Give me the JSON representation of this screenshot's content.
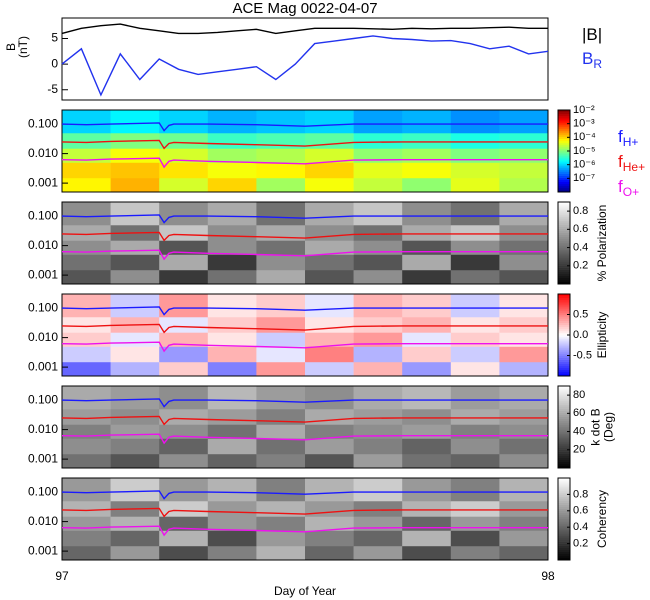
{
  "chart_data": [
    {
      "type": "line",
      "title": "ACE Mag 0022-04-07",
      "ylabel": [
        "B",
        "(nT)"
      ],
      "xlim": [
        97,
        98
      ],
      "ylim": [
        -7,
        9
      ],
      "yticks": [
        -5,
        0,
        5
      ],
      "x": [
        97,
        97.04,
        97.08,
        97.12,
        97.16,
        97.2,
        97.24,
        97.28,
        97.32,
        97.36,
        97.4,
        97.44,
        97.48,
        97.52,
        97.56,
        97.6,
        97.64,
        97.68,
        97.72,
        97.76,
        97.8,
        97.84,
        97.88,
        97.92,
        97.96,
        98
      ],
      "series": [
        {
          "name": "|B|",
          "color": "#000000",
          "values": [
            6,
            7,
            7.5,
            7.8,
            7,
            6.5,
            6,
            6,
            6.2,
            6.5,
            6.8,
            6,
            6.5,
            7,
            7,
            7,
            6.9,
            6.8,
            7,
            6.9,
            7,
            7,
            7.1,
            7.2,
            7,
            7
          ]
        },
        {
          "name": "B",
          "sub": "R",
          "color": "#2233ee",
          "values": [
            0,
            3,
            -6,
            2,
            -3,
            1,
            -1,
            -2,
            -1.5,
            -1,
            -0.5,
            -3,
            0,
            4,
            4.5,
            5,
            5.5,
            5,
            4.8,
            4.5,
            4.6,
            4,
            3,
            3.5,
            2,
            2.5
          ]
        }
      ]
    },
    {
      "type": "heatmap",
      "colormap": "jet",
      "xlim": [
        97,
        98
      ],
      "ylog": true,
      "ylim": [
        0.0005,
        0.3
      ],
      "yticks": [
        {
          "value": 0.1,
          "label": "0.100"
        },
        {
          "value": 0.01,
          "label": "0.010"
        },
        0.001
      ],
      "xbins": [
        97,
        97.1,
        97.2,
        97.3,
        97.4,
        97.5,
        97.6,
        97.7,
        97.8,
        97.9,
        98
      ],
      "ybins": [
        0.0005,
        0.0015,
        0.005,
        0.015,
        0.05,
        0.3
      ],
      "z": [
        [
          -4.2,
          -3.8,
          -4.5,
          -4.0,
          -4.8,
          -4.3,
          -4.6,
          -4.9,
          -4.4,
          -4.7
        ],
        [
          -4.0,
          -3.9,
          -4.1,
          -4.3,
          -4.2,
          -4.0,
          -4.4,
          -4.3,
          -4.5,
          -4.6
        ],
        [
          -4.6,
          -4.3,
          -4.5,
          -4.8,
          -4.7,
          -4.5,
          -4.9,
          -4.8,
          -5.0,
          -4.9
        ],
        [
          -5.2,
          -5.0,
          -5.1,
          -5.4,
          -5.3,
          -5.2,
          -5.5,
          -5.4,
          -5.6,
          -5.5
        ],
        [
          -6.0,
          -5.8,
          -6.0,
          -6.2,
          -6.1,
          -6.0,
          -6.3,
          -6.2,
          -6.4,
          -6.3
        ]
      ],
      "zlim": [
        -8,
        -2
      ],
      "zticks": [
        {
          "value": -2,
          "label": "10⁻²"
        },
        {
          "value": -3,
          "label": "10⁻³"
        },
        {
          "value": -4,
          "label": "10⁻⁴"
        },
        {
          "value": -5,
          "label": "10⁻⁵"
        },
        {
          "value": -6,
          "label": "10⁻⁶"
        },
        {
          "value": -7,
          "label": "10⁻⁷"
        }
      ],
      "legend": true,
      "x": [
        97,
        97.05,
        97.1,
        97.2,
        97.21,
        97.22,
        97.23,
        97.3,
        97.4,
        97.5,
        97.6,
        97.7,
        97.85,
        98
      ],
      "series": [
        {
          "name": "f",
          "sub": "H+",
          "color": "#1a1aff",
          "values": [
            0.1,
            0.095,
            0.1,
            0.11,
            0.06,
            0.09,
            0.1,
            0.1,
            0.095,
            0.085,
            0.1,
            0.1,
            0.1,
            0.1
          ]
        },
        {
          "name": "f",
          "sub": "He+",
          "color": "#ee1111",
          "values": [
            0.025,
            0.024,
            0.026,
            0.028,
            0.015,
            0.022,
            0.024,
            0.022,
            0.02,
            0.018,
            0.024,
            0.025,
            0.025,
            0.025
          ]
        },
        {
          "name": "f",
          "sub": "O+",
          "color": "#ee11ee",
          "values": [
            0.0062,
            0.006,
            0.0065,
            0.007,
            0.0035,
            0.0055,
            0.006,
            0.0055,
            0.005,
            0.0045,
            0.006,
            0.0062,
            0.0062,
            0.0062
          ]
        }
      ]
    },
    {
      "type": "heatmap",
      "colormap": "gray",
      "xlim": [
        97,
        98
      ],
      "ylog": true,
      "ylim": [
        0.0005,
        0.3
      ],
      "yticks": [
        {
          "value": 0.1,
          "label": "0.100"
        },
        {
          "value": 0.01,
          "label": "0.010"
        },
        0.001
      ],
      "xbins": [
        97,
        97.1,
        97.2,
        97.3,
        97.4,
        97.5,
        97.6,
        97.7,
        97.8,
        97.9,
        98
      ],
      "ybins": [
        0.0005,
        0.0015,
        0.005,
        0.015,
        0.05,
        0.3
      ],
      "z": [
        [
          0.3,
          0.5,
          0.2,
          0.4,
          0.6,
          0.3,
          0.5,
          0.2,
          0.4,
          0.3
        ],
        [
          0.4,
          0.3,
          0.6,
          0.2,
          0.5,
          0.4,
          0.3,
          0.6,
          0.2,
          0.5
        ],
        [
          0.5,
          0.6,
          0.3,
          0.5,
          0.4,
          0.6,
          0.5,
          0.3,
          0.5,
          0.4
        ],
        [
          0.6,
          0.4,
          0.7,
          0.5,
          0.6,
          0.5,
          0.4,
          0.6,
          0.7,
          0.5
        ],
        [
          0.5,
          0.7,
          0.5,
          0.6,
          0.4,
          0.6,
          0.7,
          0.5,
          0.4,
          0.6
        ]
      ],
      "zlim": [
        0,
        0.9
      ],
      "zticks": [
        0.2,
        0.4,
        0.6,
        0.8
      ],
      "colorbar_label": [
        "% Polarization"
      ],
      "x": [
        97,
        97.05,
        97.1,
        97.2,
        97.21,
        97.22,
        97.23,
        97.3,
        97.4,
        97.5,
        97.6,
        97.7,
        97.85,
        98
      ],
      "series": [
        {
          "color": "#1a1aff",
          "values": [
            0.1,
            0.095,
            0.1,
            0.11,
            0.06,
            0.09,
            0.1,
            0.1,
            0.095,
            0.085,
            0.1,
            0.1,
            0.1,
            0.1
          ]
        },
        {
          "color": "#ee1111",
          "values": [
            0.025,
            0.024,
            0.026,
            0.028,
            0.015,
            0.022,
            0.024,
            0.022,
            0.02,
            0.018,
            0.024,
            0.025,
            0.025,
            0.025
          ]
        },
        {
          "color": "#ee11ee",
          "values": [
            0.0062,
            0.006,
            0.0065,
            0.007,
            0.0035,
            0.0055,
            0.006,
            0.0055,
            0.005,
            0.0045,
            0.006,
            0.0062,
            0.0062,
            0.0062
          ]
        }
      ]
    },
    {
      "type": "heatmap",
      "colormap": "bwr",
      "xlim": [
        97,
        98
      ],
      "ylog": true,
      "ylim": [
        0.0005,
        0.3
      ],
      "yticks": [
        {
          "value": 0.1,
          "label": "0.100"
        },
        {
          "value": 0.01,
          "label": "0.010"
        },
        0.001
      ],
      "xbins": [
        97,
        97.1,
        97.2,
        97.3,
        97.4,
        97.5,
        97.6,
        97.7,
        97.8,
        97.9,
        98
      ],
      "ybins": [
        0.0005,
        0.0015,
        0.005,
        0.015,
        0.05,
        0.3
      ],
      "z": [
        [
          -0.6,
          -0.3,
          0.2,
          -0.5,
          0.4,
          -0.2,
          0.3,
          -0.4,
          0.1,
          -0.3
        ],
        [
          -0.2,
          0.1,
          -0.4,
          0.3,
          -0.1,
          0.5,
          -0.3,
          0.2,
          -0.2,
          0.4
        ],
        [
          0.2,
          -0.1,
          0.3,
          0.1,
          -0.2,
          0.3,
          0.4,
          -0.1,
          0.2,
          0.1
        ],
        [
          0.1,
          0.3,
          -0.1,
          0.2,
          0.4,
          0.1,
          0.2,
          0.3,
          0.1,
          0.2
        ],
        [
          0.3,
          -0.2,
          0.4,
          0.1,
          0.2,
          -0.1,
          0.3,
          0.2,
          -0.2,
          0.1
        ]
      ],
      "zlim": [
        -1,
        1
      ],
      "zticks": [
        0.5,
        {
          "value": 0,
          "label": "0.0"
        },
        -0.5
      ],
      "colorbar_label": [
        "Ellipticity"
      ],
      "x": [
        97,
        97.05,
        97.1,
        97.2,
        97.21,
        97.22,
        97.23,
        97.3,
        97.4,
        97.5,
        97.6,
        97.7,
        97.85,
        98
      ],
      "series": [
        {
          "color": "#1a1aff",
          "values": [
            0.1,
            0.095,
            0.1,
            0.11,
            0.06,
            0.09,
            0.1,
            0.1,
            0.095,
            0.085,
            0.1,
            0.1,
            0.1,
            0.1
          ]
        },
        {
          "color": "#ee1111",
          "values": [
            0.025,
            0.024,
            0.026,
            0.028,
            0.015,
            0.022,
            0.024,
            0.022,
            0.02,
            0.018,
            0.024,
            0.025,
            0.025,
            0.025
          ]
        },
        {
          "color": "#ee11ee",
          "values": [
            0.0062,
            0.006,
            0.0065,
            0.007,
            0.0035,
            0.0055,
            0.006,
            0.0055,
            0.005,
            0.0045,
            0.006,
            0.0062,
            0.0062,
            0.0062
          ]
        }
      ]
    },
    {
      "type": "heatmap",
      "colormap": "gray",
      "xlim": [
        97,
        98
      ],
      "ylog": true,
      "ylim": [
        0.0005,
        0.3
      ],
      "yticks": [
        {
          "value": 0.1,
          "label": "0.100"
        },
        {
          "value": 0.01,
          "label": "0.010"
        },
        0.001
      ],
      "xbins": [
        97,
        97.1,
        97.2,
        97.3,
        97.4,
        97.5,
        97.6,
        97.7,
        97.8,
        97.9,
        98
      ],
      "ybins": [
        0.0005,
        0.0015,
        0.005,
        0.015,
        0.05,
        0.3
      ],
      "z": [
        [
          40,
          30,
          50,
          35,
          45,
          30,
          55,
          40,
          35,
          50
        ],
        [
          50,
          45,
          35,
          60,
          40,
          55,
          45,
          35,
          50,
          40
        ],
        [
          45,
          55,
          50,
          40,
          60,
          45,
          50,
          55,
          45,
          50
        ],
        [
          55,
          50,
          60,
          55,
          45,
          60,
          55,
          50,
          60,
          55
        ],
        [
          60,
          55,
          50,
          65,
          55,
          50,
          60,
          65,
          55,
          60
        ]
      ],
      "zlim": [
        0,
        90
      ],
      "zticks": [
        20,
        40,
        60,
        80
      ],
      "colorbar_label": [
        "k dot B",
        "(Deg)"
      ],
      "x": [
        97,
        97.05,
        97.1,
        97.2,
        97.21,
        97.22,
        97.23,
        97.3,
        97.4,
        97.5,
        97.6,
        97.7,
        97.85,
        98
      ],
      "series": [
        {
          "color": "#1a1aff",
          "values": [
            0.1,
            0.095,
            0.1,
            0.11,
            0.06,
            0.09,
            0.1,
            0.1,
            0.095,
            0.085,
            0.1,
            0.1,
            0.1,
            0.1
          ]
        },
        {
          "color": "#ee1111",
          "values": [
            0.025,
            0.024,
            0.026,
            0.028,
            0.015,
            0.022,
            0.024,
            0.022,
            0.02,
            0.018,
            0.024,
            0.025,
            0.025,
            0.025
          ]
        },
        {
          "color": "#ee11ee",
          "values": [
            0.0062,
            0.006,
            0.0065,
            0.007,
            0.0035,
            0.0055,
            0.006,
            0.0055,
            0.005,
            0.0045,
            0.006,
            0.0062,
            0.0062,
            0.0062
          ]
        }
      ]
    },
    {
      "type": "heatmap",
      "colormap": "gray",
      "xlim": [
        97,
        98
      ],
      "ylog": true,
      "ylim": [
        0.0005,
        0.3
      ],
      "yticks": [
        {
          "value": 0.1,
          "label": "0.100"
        },
        {
          "value": 0.01,
          "label": "0.010"
        },
        0.001
      ],
      "xbins": [
        97,
        97.1,
        97.2,
        97.3,
        97.4,
        97.5,
        97.6,
        97.7,
        97.8,
        97.9,
        98
      ],
      "ybins": [
        0.0005,
        0.0015,
        0.005,
        0.015,
        0.05,
        0.3
      ],
      "z": [
        [
          0.4,
          0.6,
          0.3,
          0.5,
          0.7,
          0.4,
          0.6,
          0.3,
          0.5,
          0.4
        ],
        [
          0.5,
          0.4,
          0.7,
          0.3,
          0.6,
          0.5,
          0.4,
          0.7,
          0.3,
          0.6
        ],
        [
          0.6,
          0.7,
          0.4,
          0.6,
          0.5,
          0.7,
          0.6,
          0.4,
          0.6,
          0.5
        ],
        [
          0.7,
          0.5,
          0.8,
          0.6,
          0.7,
          0.6,
          0.5,
          0.7,
          0.8,
          0.6
        ],
        [
          0.6,
          0.8,
          0.6,
          0.7,
          0.5,
          0.7,
          0.8,
          0.6,
          0.5,
          0.7
        ]
      ],
      "zlim": [
        0,
        1
      ],
      "zticks": [
        0.2,
        0.4,
        0.6,
        0.8
      ],
      "colorbar_label": [
        "Coherency"
      ],
      "xticks": [
        97,
        98
      ],
      "xlabel": "Day of Year",
      "x": [
        97,
        97.05,
        97.1,
        97.2,
        97.21,
        97.22,
        97.23,
        97.3,
        97.4,
        97.5,
        97.6,
        97.7,
        97.85,
        98
      ],
      "series": [
        {
          "color": "#1a1aff",
          "values": [
            0.1,
            0.095,
            0.1,
            0.11,
            0.06,
            0.09,
            0.1,
            0.1,
            0.095,
            0.085,
            0.1,
            0.1,
            0.1,
            0.1
          ]
        },
        {
          "color": "#ee1111",
          "values": [
            0.025,
            0.024,
            0.026,
            0.028,
            0.015,
            0.022,
            0.024,
            0.022,
            0.02,
            0.018,
            0.024,
            0.025,
            0.025,
            0.025
          ]
        },
        {
          "color": "#ee11ee",
          "values": [
            0.0062,
            0.006,
            0.0065,
            0.007,
            0.0035,
            0.0055,
            0.006,
            0.0055,
            0.005,
            0.0045,
            0.006,
            0.0062,
            0.0062,
            0.0062
          ]
        }
      ]
    }
  ]
}
